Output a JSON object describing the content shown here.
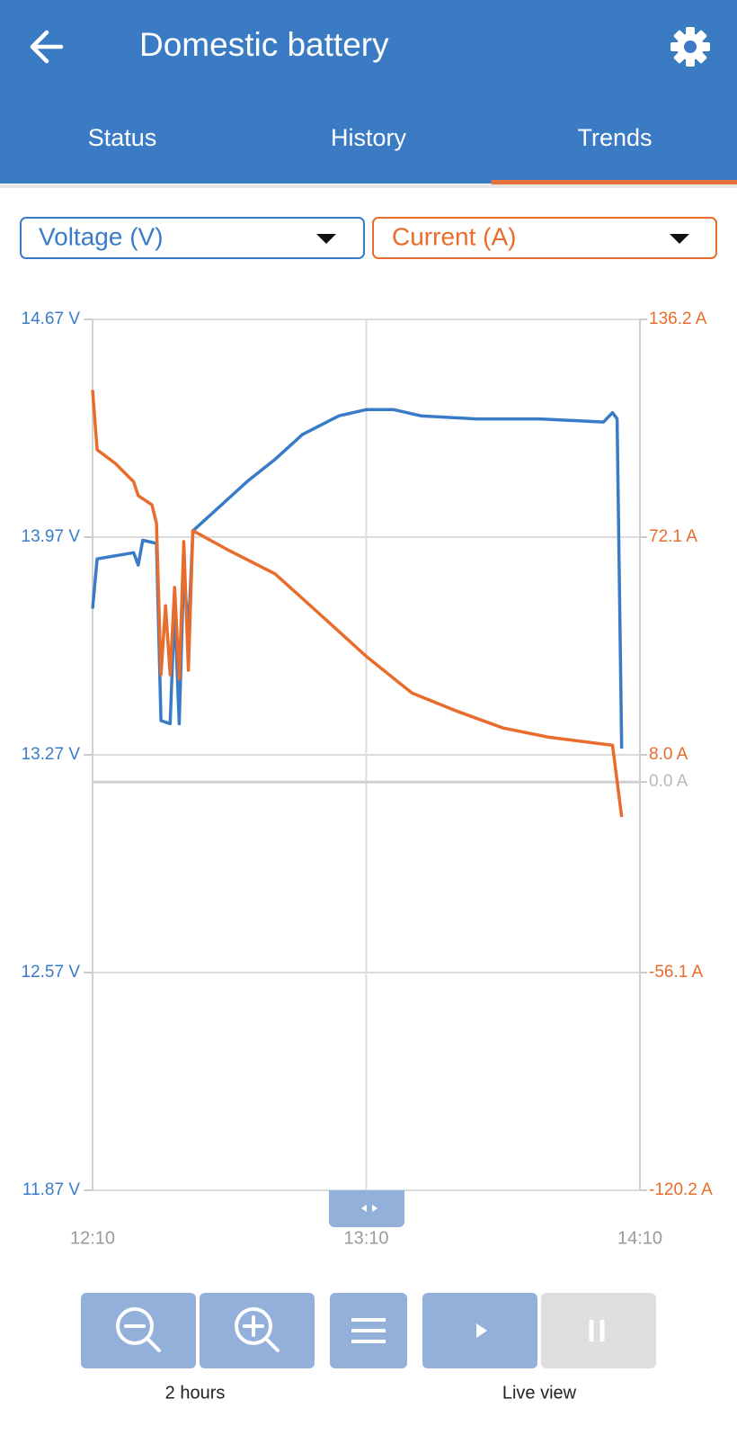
{
  "header": {
    "title": "Domestic battery"
  },
  "tabs": [
    "Status",
    "History",
    "Trends"
  ],
  "active_tab": 2,
  "chart_data": {
    "type": "line",
    "series": [
      {
        "name": "Voltage (V)",
        "color": "#3a7bc8",
        "x": [
          "12:10",
          "12:11",
          "12:19",
          "12:20",
          "12:21",
          "12:24",
          "12:25",
          "12:27",
          "12:28",
          "12:29",
          "12:30",
          "12:31",
          "12:32",
          "12:38",
          "12:44",
          "12:50",
          "12:56",
          "13:04",
          "13:10",
          "13:16",
          "13:22",
          "13:34",
          "13:48",
          "14:02",
          "14:04",
          "14:05",
          "14:06"
        ],
        "values": [
          13.74,
          13.9,
          13.92,
          13.88,
          13.96,
          13.95,
          13.38,
          13.37,
          13.75,
          13.37,
          13.87,
          13.66,
          13.99,
          14.07,
          14.15,
          14.22,
          14.3,
          14.36,
          14.38,
          14.38,
          14.36,
          14.35,
          14.35,
          14.34,
          14.37,
          14.35,
          13.29
        ]
      },
      {
        "name": "Current (A)",
        "color": "#e86c2c",
        "axis": "y2",
        "x": [
          "12:10",
          "12:11",
          "12:15",
          "12:19",
          "12:20",
          "12:23",
          "12:24",
          "12:25",
          "12:26",
          "12:27",
          "12:28",
          "12:29",
          "12:30",
          "12:31",
          "12:32",
          "12:40",
          "12:50",
          "13:00",
          "13:10",
          "13:20",
          "13:30",
          "13:40",
          "13:50",
          "14:04",
          "14:06"
        ],
        "values": [
          115.4,
          97.8,
          93.8,
          88.4,
          84.3,
          81.6,
          76.2,
          31.6,
          51.9,
          31.6,
          57.3,
          30.3,
          70.8,
          32.9,
          74.0,
          68.1,
          61.3,
          49.2,
          37.0,
          26.2,
          20.8,
          15.9,
          13.2,
          10.8,
          -10.3
        ]
      }
    ],
    "xlim": [
      "12:10",
      "14:10"
    ],
    "xticks": [
      "12:10",
      "13:10",
      "14:10"
    ],
    "ylim": [
      11.87,
      14.67
    ],
    "yticks": [
      {
        "value": 11.87,
        "label": "11.87 V"
      },
      {
        "value": 12.57,
        "label": "12.57 V"
      },
      {
        "value": 13.27,
        "label": "13.27 V"
      },
      {
        "value": 13.97,
        "label": "13.97 V"
      },
      {
        "value": 14.67,
        "label": "14.67 V"
      }
    ],
    "y2lim": [
      -120.2,
      136.2
    ],
    "y2ticks": [
      {
        "value": -120.2,
        "label": "-120.2 A"
      },
      {
        "value": -56.1,
        "label": "-56.1 A"
      },
      {
        "value": 0.0,
        "label": "0.0 A"
      },
      {
        "value": 8.0,
        "label": "8.0 A"
      },
      {
        "value": 72.1,
        "label": "72.1 A"
      },
      {
        "value": 136.2,
        "label": "136.2 A"
      }
    ],
    "grid": true
  },
  "controls": {
    "zoom_label": "2 hours",
    "live_label": "Live view"
  }
}
